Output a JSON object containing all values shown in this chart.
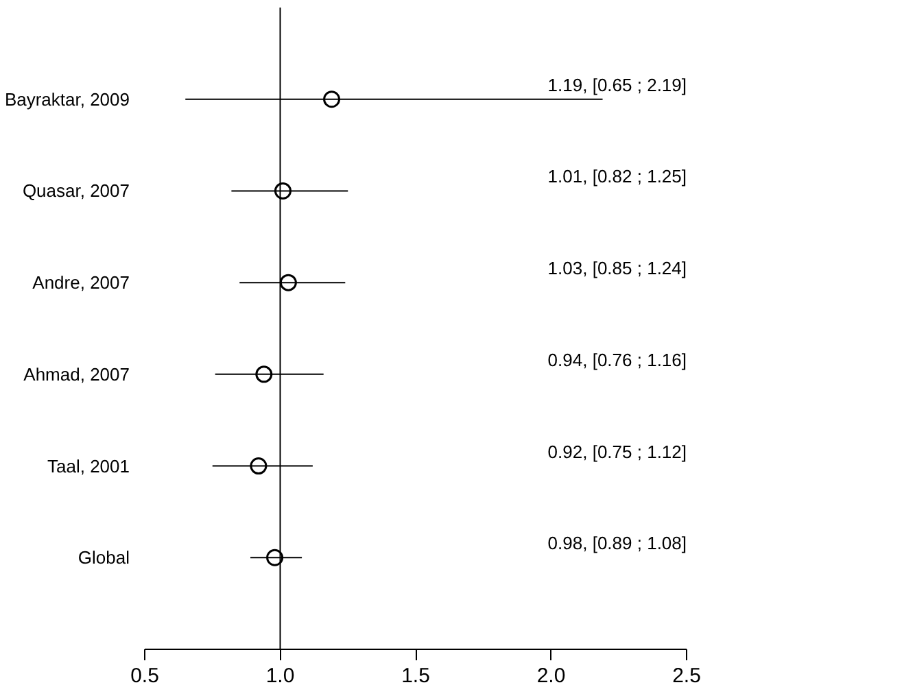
{
  "chart_data": {
    "type": "scatter",
    "orientation": "horizontal",
    "categories": [
      "Bayraktar, 2009",
      "Quasar, 2007",
      "Andre, 2007",
      "Ahmad, 2007",
      "Taal, 2001",
      "Global"
    ],
    "values": [
      1.19,
      1.01,
      1.03,
      0.94,
      0.92,
      0.98
    ],
    "errors": [
      [
        0.65,
        2.19
      ],
      [
        0.82,
        1.25
      ],
      [
        0.85,
        1.24
      ],
      [
        0.76,
        1.16
      ],
      [
        0.75,
        1.12
      ],
      [
        0.89,
        1.08
      ]
    ],
    "annotations": [
      "1.19, [0.65 ; 2.19]",
      "1.01, [0.82 ; 1.25]",
      "1.03, [0.85 ; 1.24]",
      "0.94, [0.76 ; 1.16]",
      "0.92, [0.75 ; 1.12]",
      "0.98, [0.89 ; 1.08]"
    ],
    "color": "#000000",
    "marker": "circle",
    "grid": false,
    "xlim": [
      0.5,
      2.5
    ],
    "xticks": [
      0.5,
      {
        "value": 1,
        "label": "1.0"
      },
      1.5,
      {
        "value": 2,
        "label": "2.0"
      },
      2.5
    ],
    "ref_lines": [
      {
        "axis": "x",
        "value": 1.0,
        "label": null,
        "color": "#000000"
      }
    ]
  }
}
